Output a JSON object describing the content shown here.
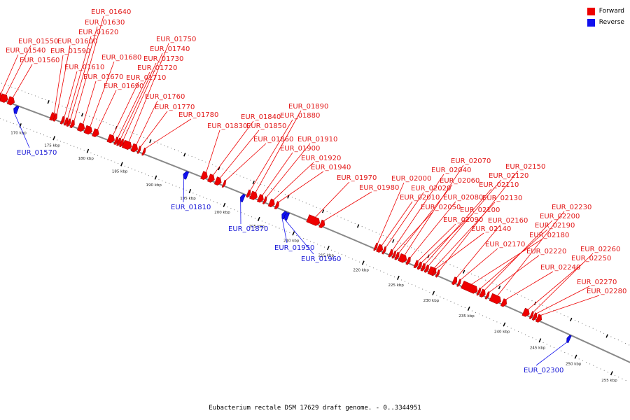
{
  "caption": "Eubacterium rectale DSM 17629 draft genome. - 0..3344951",
  "legend": [
    {
      "label": "Forward",
      "color": "#ee0000"
    },
    {
      "label": "Reverse",
      "color": "#1010ee"
    }
  ],
  "axis": {
    "start_kbp": 165,
    "end_kbp": 257,
    "tick_labels": [
      "170 kbp",
      "175 kbp",
      "180 kbp",
      "185 kbp",
      "190 kbp",
      "195 kbp",
      "200 kbp",
      "205 kbp",
      "210 kbp",
      "215 kbp",
      "220 kbp",
      "225 kbp",
      "230 kbp",
      "235 kbp",
      "240 kbp",
      "245 kbp",
      "250 kbp",
      "255 kbp"
    ]
  },
  "colors": {
    "forward": "#ee0000",
    "reverse": "#1010ee",
    "backbone": "#888888"
  },
  "genes": [
    {
      "name": "EUR_01540",
      "strand": "forward",
      "kbp": 165.6,
      "len": 0.6
    },
    {
      "name": "EUR_01550",
      "strand": "forward",
      "kbp": 166.1,
      "len": 1.0
    },
    {
      "name": "EUR_01560",
      "strand": "forward",
      "kbp": 167.2,
      "len": 0.9
    },
    {
      "name": "EUR_01570",
      "strand": "reverse",
      "kbp": 168.3,
      "len": 0.6
    },
    {
      "name": "EUR_01590",
      "strand": "forward",
      "kbp": 173.5,
      "len": 0.6
    },
    {
      "name": "EUR_01600",
      "strand": "forward",
      "kbp": 174.0,
      "len": 0.4
    },
    {
      "name": "EUR_01610",
      "strand": "forward",
      "kbp": 175.1,
      "len": 0.4
    },
    {
      "name": "EUR_01620",
      "strand": "forward",
      "kbp": 175.6,
      "len": 0.4
    },
    {
      "name": "EUR_01630",
      "strand": "forward",
      "kbp": 176.0,
      "len": 0.4
    },
    {
      "name": "EUR_01640",
      "strand": "forward",
      "kbp": 176.5,
      "len": 0.5
    },
    {
      "name": "EUR_01670",
      "strand": "forward",
      "kbp": 177.6,
      "len": 0.9
    },
    {
      "name": "EUR_01680",
      "strand": "forward",
      "kbp": 178.6,
      "len": 1.0
    },
    {
      "name": "EUR_01690",
      "strand": "forward",
      "kbp": 179.8,
      "len": 0.8
    },
    {
      "name": "EUR_01710",
      "strand": "forward",
      "kbp": 182.0,
      "len": 0.9
    },
    {
      "name": "EUR_01720",
      "strand": "forward",
      "kbp": 183.0,
      "len": 0.4
    },
    {
      "name": "EUR_01730",
      "strand": "forward",
      "kbp": 183.4,
      "len": 0.4
    },
    {
      "name": "EUR_01740",
      "strand": "forward",
      "kbp": 183.8,
      "len": 0.4
    },
    {
      "name": "EUR_01750",
      "strand": "forward",
      "kbp": 184.2,
      "len": 1.2
    },
    {
      "name": "EUR_01760",
      "strand": "forward",
      "kbp": 185.5,
      "len": 0.8
    },
    {
      "name": "EUR_01770",
      "strand": "forward",
      "kbp": 186.4,
      "len": 0.3
    },
    {
      "name": "EUR_01780",
      "strand": "forward",
      "kbp": 187.1,
      "len": 0.3
    },
    {
      "name": "EUR_01810",
      "strand": "reverse",
      "kbp": 193.3,
      "len": 0.6
    },
    {
      "name": "EUR_01830",
      "strand": "forward",
      "kbp": 195.7,
      "len": 0.8
    },
    {
      "name": "EUR_01840",
      "strand": "forward",
      "kbp": 196.7,
      "len": 0.8
    },
    {
      "name": "EUR_01850",
      "strand": "forward",
      "kbp": 197.7,
      "len": 0.8
    },
    {
      "name": "EUR_01860",
      "strand": "forward",
      "kbp": 198.8,
      "len": 0.3
    },
    {
      "name": "EUR_01870",
      "strand": "reverse",
      "kbp": 201.6,
      "len": 0.5
    },
    {
      "name": "EUR_01880",
      "strand": "forward",
      "kbp": 202.3,
      "len": 0.4
    },
    {
      "name": "EUR_01890",
      "strand": "forward",
      "kbp": 202.8,
      "len": 0.9
    },
    {
      "name": "EUR_01900",
      "strand": "forward",
      "kbp": 203.9,
      "len": 0.7
    },
    {
      "name": "EUR_01910",
      "strand": "forward",
      "kbp": 204.7,
      "len": 0.3
    },
    {
      "name": "EUR_01920",
      "strand": "forward",
      "kbp": 205.5,
      "len": 0.7
    },
    {
      "name": "EUR_01940",
      "strand": "forward",
      "kbp": 206.4,
      "len": 0.4
    },
    {
      "name": "EUR_01950",
      "strand": "reverse",
      "kbp": 207.6,
      "len": 0.5
    },
    {
      "name": "EUR_01960",
      "strand": "reverse",
      "kbp": 208.0,
      "len": 0.5
    },
    {
      "name": "EUR_01970",
      "strand": "forward",
      "kbp": 211.0,
      "len": 1.7
    },
    {
      "name": "EUR_01980",
      "strand": "forward",
      "kbp": 212.8,
      "len": 0.6
    },
    {
      "name": "EUR_02000",
      "strand": "forward",
      "kbp": 220.6,
      "len": 0.3
    },
    {
      "name": "EUR_02010",
      "strand": "forward",
      "kbp": 221.0,
      "len": 0.7
    },
    {
      "name": "EUR_02020",
      "strand": "forward",
      "kbp": 221.8,
      "len": 0.3
    },
    {
      "name": "EUR_02040",
      "strand": "forward",
      "kbp": 222.7,
      "len": 0.4
    },
    {
      "name": "EUR_02050",
      "strand": "forward",
      "kbp": 223.2,
      "len": 0.3
    },
    {
      "name": "EUR_02060",
      "strand": "forward",
      "kbp": 223.6,
      "len": 0.4
    },
    {
      "name": "EUR_02070",
      "strand": "forward",
      "kbp": 224.1,
      "len": 1.0
    },
    {
      "name": "EUR_02080",
      "strand": "forward",
      "kbp": 225.2,
      "len": 0.4
    },
    {
      "name": "EUR_02090",
      "strand": "forward",
      "kbp": 226.3,
      "len": 0.4
    },
    {
      "name": "EUR_02100",
      "strand": "forward",
      "kbp": 226.8,
      "len": 0.4
    },
    {
      "name": "EUR_02110",
      "strand": "forward",
      "kbp": 227.3,
      "len": 0.4
    },
    {
      "name": "EUR_02120",
      "strand": "forward",
      "kbp": 227.8,
      "len": 0.4
    },
    {
      "name": "EUR_02130",
      "strand": "forward",
      "kbp": 228.3,
      "len": 1.0
    },
    {
      "name": "EUR_02140",
      "strand": "forward",
      "kbp": 228.9,
      "len": 0.3
    },
    {
      "name": "EUR_02150",
      "strand": "forward",
      "kbp": 229.4,
      "len": 0.3
    },
    {
      "name": "EUR_02160",
      "strand": "forward",
      "kbp": 231.7,
      "len": 0.5
    },
    {
      "name": "EUR_02170",
      "strand": "forward",
      "kbp": 232.4,
      "len": 0.3
    },
    {
      "name": "EUR_02180",
      "strand": "forward",
      "kbp": 233.0,
      "len": 2.1
    },
    {
      "name": "EUR_02190",
      "strand": "forward",
      "kbp": 235.2,
      "len": 0.3
    },
    {
      "name": "EUR_02200",
      "strand": "forward",
      "kbp": 235.6,
      "len": 0.6
    },
    {
      "name": "EUR_02220",
      "strand": "forward",
      "kbp": 236.4,
      "len": 0.3
    },
    {
      "name": "EUR_02230",
      "strand": "forward",
      "kbp": 237.0,
      "len": 1.4
    },
    {
      "name": "EUR_02240",
      "strand": "forward",
      "kbp": 238.6,
      "len": 0.6
    },
    {
      "name": "EUR_02250",
      "strand": "forward",
      "kbp": 241.6,
      "len": 0.8
    },
    {
      "name": "EUR_02260",
      "strand": "forward",
      "kbp": 242.6,
      "len": 0.3
    },
    {
      "name": "EUR_02270",
      "strand": "forward",
      "kbp": 243.0,
      "len": 0.4
    },
    {
      "name": "EUR_02280",
      "strand": "forward",
      "kbp": 243.5,
      "len": 0.6
    },
    {
      "name": "EUR_02300",
      "strand": "reverse",
      "kbp": 248.0,
      "len": 0.4
    }
  ]
}
